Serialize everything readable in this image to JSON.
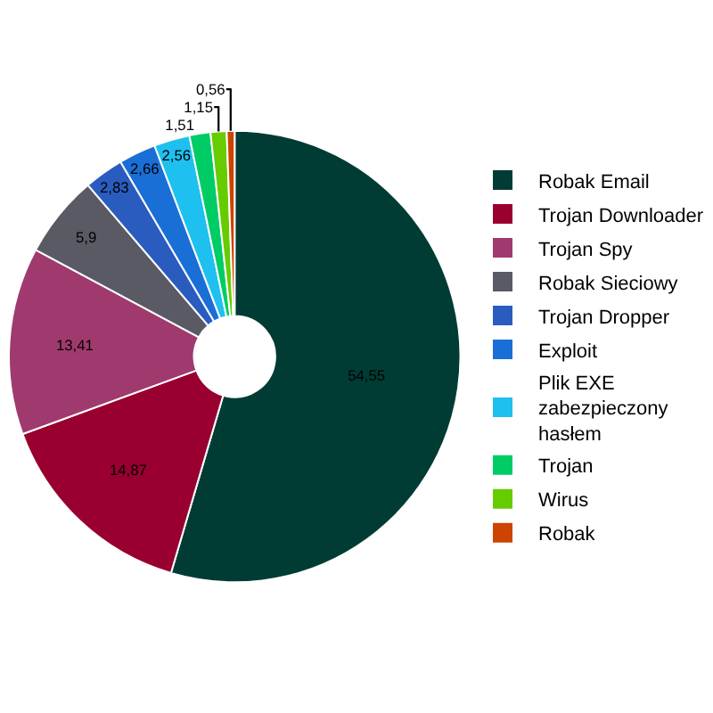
{
  "chart_data": {
    "type": "donut",
    "categories": [
      "Robak Email",
      "Trojan Downloader",
      "Trojan Spy",
      "Robak Sieciowy",
      "Trojan Dropper",
      "Exploit",
      "Plik EXE zabezpieczony hasłem",
      "Trojan",
      "Wirus",
      "Robak"
    ],
    "values": [
      54.55,
      14.87,
      13.41,
      5.9,
      2.83,
      2.66,
      2.56,
      1.51,
      1.15,
      0.56
    ],
    "value_labels": [
      "54,55",
      "14,87",
      "13,41",
      "5,9",
      "2,83",
      "2,66",
      "2,56",
      "1,51",
      "1,15",
      "0,56"
    ],
    "colors": [
      "#003c34",
      "#990030",
      "#a03a6e",
      "#5a5a64",
      "#2a5cc0",
      "#1a6fd6",
      "#1ec0f0",
      "#00cc66",
      "#66cc00",
      "#cc4400"
    ],
    "legend": "right"
  }
}
